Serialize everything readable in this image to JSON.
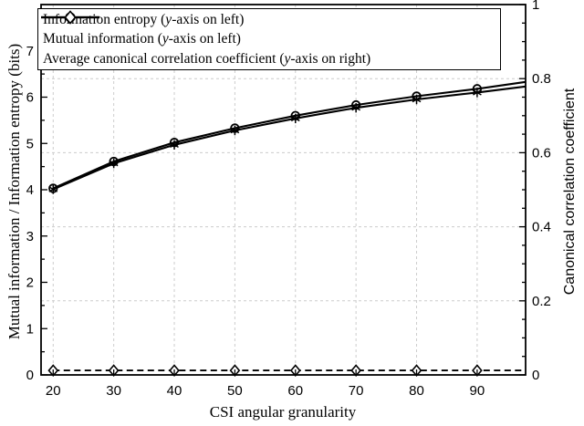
{
  "colors": {
    "line": "#000000",
    "grid": "#cccccc",
    "background": "#ffffff",
    "text": "#000000"
  },
  "chart_data": {
    "type": "line",
    "title": "",
    "xlabel": "CSI angular granularity",
    "ylabel_left": "Mutual information / Information entropy (bits)",
    "ylabel_right": "Canonical correlation coefficient",
    "xlim": [
      18,
      98
    ],
    "ylim_left": [
      0,
      8
    ],
    "ylim_right": [
      0,
      1
    ],
    "x_ticks": [
      20,
      30,
      40,
      50,
      60,
      70,
      80,
      90
    ],
    "y_ticks_left": [
      0,
      1,
      2,
      3,
      4,
      5,
      6,
      7
    ],
    "y_ticks_right": [
      0,
      0.2,
      0.4,
      0.6,
      0.8,
      1
    ],
    "grid": {
      "vertical": "at x ticks",
      "horizontal": "at right axis ticks",
      "style": "dashed",
      "on": true
    },
    "legend_position": "top-left",
    "series": [
      {
        "name": "Information entropy (y-axis on left)",
        "axis": "left",
        "line": "solid",
        "marker": "circle",
        "x": [
          20,
          30,
          40,
          50,
          60,
          70,
          80,
          90,
          98
        ],
        "y": [
          4.03,
          4.61,
          5.02,
          5.33,
          5.6,
          5.83,
          6.02,
          6.18,
          6.33
        ],
        "marker_max_x": 90
      },
      {
        "name": "Mutual information (y-axis on left)",
        "axis": "left",
        "line": "solid",
        "marker": "asterisk",
        "x": [
          20,
          30,
          40,
          50,
          60,
          70,
          80,
          90,
          98
        ],
        "y": [
          4.01,
          4.57,
          4.97,
          5.28,
          5.54,
          5.77,
          5.95,
          6.1,
          6.23
        ],
        "marker_max_x": 90
      },
      {
        "name": "Average canonical correlation coefficient (y-axis on right)",
        "axis": "right",
        "line": "dashed",
        "marker": "diamond",
        "x": [
          20,
          30,
          40,
          50,
          60,
          70,
          80,
          90,
          98
        ],
        "y": [
          0.012,
          0.012,
          0.012,
          0.012,
          0.012,
          0.012,
          0.012,
          0.012,
          0.012
        ],
        "marker_max_x": 90
      }
    ]
  }
}
